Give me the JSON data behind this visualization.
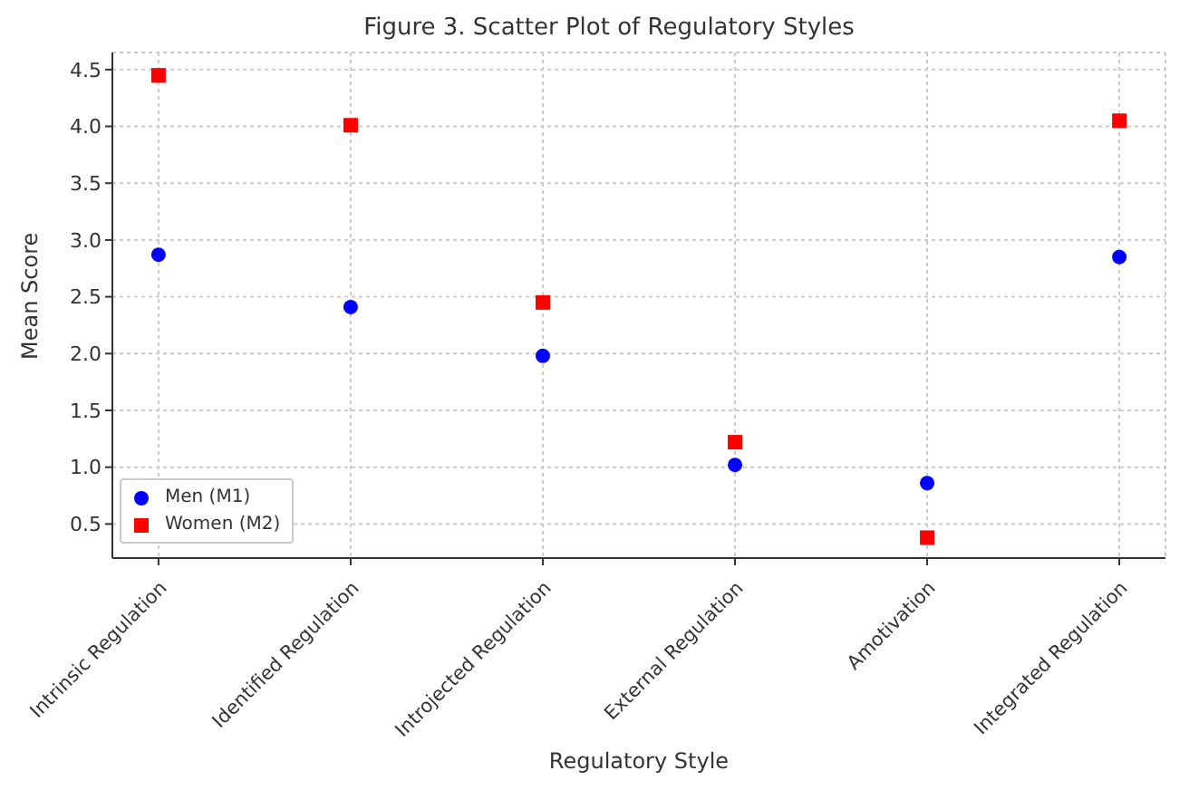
{
  "chart_data": {
    "type": "scatter",
    "title": "Figure 3. Scatter Plot of Regulatory Styles",
    "xlabel": "Regulatory Style",
    "ylabel": "Mean Score",
    "categories": [
      "Intrinsic Regulation",
      "Identified Regulation",
      "Introjected Regulation",
      "External Regulation",
      "Amotivation",
      "Integrated Regulation"
    ],
    "series": [
      {
        "name": "Men (M1)",
        "color": "#0000ff",
        "marker": "circle",
        "values": [
          2.87,
          2.41,
          1.98,
          1.02,
          0.86,
          2.85
        ]
      },
      {
        "name": "Women (M2)",
        "color": "#ff0000",
        "marker": "square",
        "values": [
          4.45,
          4.01,
          2.45,
          1.22,
          0.38,
          4.05
        ]
      }
    ],
    "ylim": [
      0.2,
      4.65
    ],
    "yticks": [
      0.5,
      {
        "value": 1,
        "label": "1.0"
      },
      1.5,
      {
        "value": 2,
        "label": "2.0"
      },
      2.5,
      {
        "value": 3,
        "label": "3.0"
      },
      3.5,
      {
        "value": 4,
        "label": "4.0"
      },
      4.5
    ],
    "grid": true,
    "legend": "bottom left"
  }
}
